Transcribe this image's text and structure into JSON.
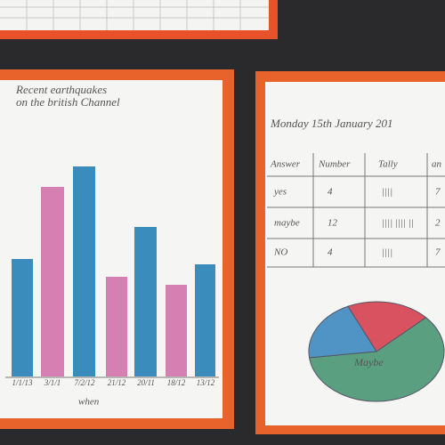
{
  "left_poster": {
    "title_line1": "Recent earthquakes",
    "title_line2": "on the british Channel",
    "x_labels": [
      "1/1/13",
      "3/1/1",
      "7/2/12",
      "21/12",
      "20/11",
      "18/12",
      "13/12"
    ],
    "x_axis_label": "when"
  },
  "right_poster": {
    "date": "Monday 15th January 201",
    "table": {
      "header": [
        "Answer",
        "Number",
        "Tally",
        "an"
      ],
      "rows": [
        [
          "yes",
          4,
          "||||",
          "7"
        ],
        [
          "maybe",
          12,
          "|||| |||| ||",
          "2"
        ],
        [
          "NO",
          4,
          "||||",
          "7"
        ]
      ]
    },
    "pie_label": "Maybe"
  }
}
